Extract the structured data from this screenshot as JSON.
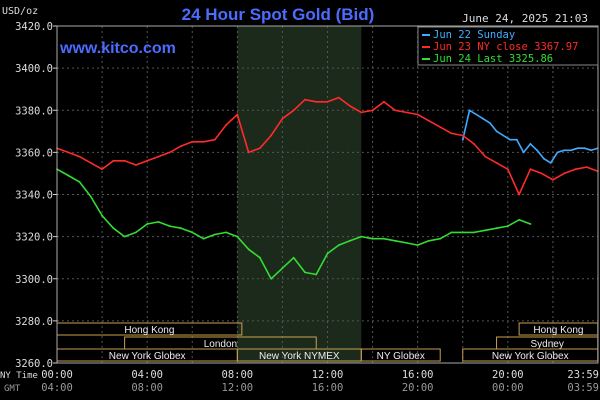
{
  "chart_data": {
    "type": "line",
    "title": "24 Hour Spot Gold (Bid)",
    "website": "www.kitco.com",
    "date_label": "June 24, 2025 21:03",
    "y_unit": "USD/oz",
    "ylim": [
      3260,
      3420
    ],
    "y_ticks": [
      "3420.0",
      "3400.0",
      "3380.0",
      "3360.0",
      "3340.0",
      "3320.0",
      "3300.0",
      "3280.0",
      "3260.0"
    ],
    "x_ticks_ny": [
      "00:00",
      "04:00",
      "08:00",
      "12:00",
      "16:00",
      "20:00",
      "23:59"
    ],
    "x_ticks_gmt": [
      "04:00",
      "08:00",
      "12:00",
      "16:00",
      "20:00",
      "00:00",
      "03:59"
    ],
    "x_axis_labels": [
      "NY Time",
      "GMT"
    ],
    "legend": [
      {
        "name": "Jun 22 Sunday",
        "color": "#44aaff"
      },
      {
        "name": "Jun 23 NY close 3367.97",
        "color": "#ff2a2a"
      },
      {
        "name": "Jun 24 Last 3325.86",
        "color": "#33dd33"
      }
    ],
    "sessions": [
      {
        "label": "Hong Kong",
        "start": 0,
        "end": 8.2
      },
      {
        "label": "London",
        "start": 3,
        "end": 11.5
      },
      {
        "label": "New York Globex",
        "start": 0,
        "end": 8
      },
      {
        "label": "New York NYMEX",
        "start": 8,
        "end": 13.5
      },
      {
        "label": "NY Globex",
        "start": 13.5,
        "end": 17
      },
      {
        "label": "Hong Kong",
        "start": 20.5,
        "end": 23.99
      },
      {
        "label": "Sydney",
        "start": 19.5,
        "end": 23.99
      },
      {
        "label": "New York Globex",
        "start": 18,
        "end": 23.99
      }
    ],
    "series": [
      {
        "name": "Jun 22 Sunday",
        "color": "#44aaff",
        "x": [
          18,
          18.3,
          18.6,
          18.9,
          19.2,
          19.5,
          19.8,
          20.1,
          20.4,
          20.7,
          21.0,
          21.3,
          21.6,
          21.9,
          22.2,
          22.5,
          22.8,
          23.1,
          23.4,
          23.7,
          23.99
        ],
        "y": [
          3366,
          3380,
          3378,
          3376,
          3374,
          3370,
          3368,
          3366,
          3366,
          3360,
          3364,
          3361,
          3357,
          3355,
          3360,
          3361,
          3361,
          3362,
          3362,
          3361,
          3362
        ]
      },
      {
        "name": "Jun 23 NY close 3367.97",
        "color": "#ff2a2a",
        "x": [
          0,
          0.5,
          1,
          1.5,
          2,
          2.5,
          3,
          3.5,
          4,
          4.5,
          5,
          5.5,
          6,
          6.5,
          7,
          7.5,
          8,
          8.5,
          9,
          9.5,
          10,
          10.5,
          11,
          11.5,
          12,
          12.5,
          13,
          13.5,
          14,
          14.5,
          15,
          15.5,
          16,
          16.5,
          17,
          17.5,
          18,
          18.5,
          19,
          19.5,
          20,
          20.5,
          21,
          21.5,
          22,
          22.5,
          23,
          23.5,
          23.99
        ],
        "y": [
          3362,
          3360,
          3358,
          3355,
          3352,
          3356,
          3356,
          3354,
          3356,
          3358,
          3360,
          3363,
          3365,
          3365,
          3366,
          3373,
          3378,
          3360,
          3362,
          3368,
          3376,
          3380,
          3385,
          3384,
          3384,
          3386,
          3382,
          3379,
          3380,
          3384,
          3380,
          3379,
          3378,
          3375,
          3372,
          3369,
          3368,
          3364,
          3358,
          3355,
          3352,
          3340,
          3352,
          3350,
          3347,
          3350,
          3352,
          3353,
          3351
        ]
      },
      {
        "name": "Jun 24 Last 3325.86",
        "color": "#33dd33",
        "x": [
          0,
          0.5,
          1,
          1.5,
          2,
          2.5,
          3,
          3.5,
          4,
          4.5,
          5,
          5.5,
          6,
          6.5,
          7,
          7.5,
          8,
          8.5,
          9,
          9.5,
          10,
          10.5,
          11,
          11.5,
          12,
          12.5,
          13,
          13.5,
          14,
          14.5,
          15,
          15.5,
          16,
          16.5,
          17,
          17.5,
          18,
          18.5,
          19,
          19.5,
          20,
          20.5,
          21
        ],
        "y": [
          3352,
          3349,
          3346,
          3339,
          3330,
          3324,
          3320,
          3322,
          3326,
          3327,
          3325,
          3324,
          3322,
          3319,
          3321,
          3322,
          3320,
          3314,
          3310,
          3300,
          3305,
          3310,
          3303,
          3302,
          3312,
          3316,
          3318,
          3320,
          3319,
          3319,
          3318,
          3317,
          3316,
          3318,
          3319,
          3322,
          3322,
          3322,
          3323,
          3324,
          3325,
          3328,
          3326
        ]
      }
    ]
  }
}
